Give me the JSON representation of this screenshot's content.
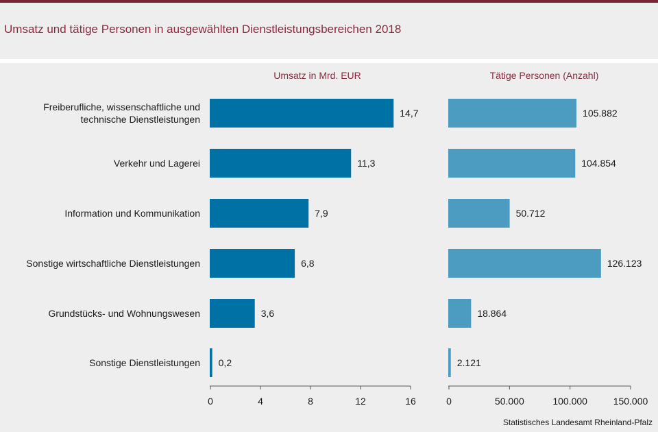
{
  "title": "Umsatz und tätige Personen in ausgewählten Dienstleistungsbereichen 2018",
  "source": "Statistisches Landesamt Rheinland-Pfalz",
  "colors": {
    "title": "#8b2a3e",
    "bar_umsatz": "#0071a4",
    "bar_personen": "#4b9cc0",
    "accent_rule": "#7a2535"
  },
  "chart_data": {
    "type": "bar",
    "orientation": "horizontal",
    "categories": [
      "Freiberufliche, wissenschaftliche und technische Dienstleistungen",
      "Verkehr und Lagerei",
      "Information und Kommunikation",
      "Sonstige wirtschaftliche Dienstleistungen",
      "Grundstücks- und Wohnungswesen",
      "Sonstige Dienstleistungen"
    ],
    "category_lines": [
      [
        "Freiberufliche, wissenschaftliche und",
        "technische Dienstleistungen"
      ],
      [
        "Verkehr und Lagerei"
      ],
      [
        "Information und Kommunikation"
      ],
      [
        "Sonstige wirtschaftliche Dienstleistungen"
      ],
      [
        "Grundstücks- und Wohnungswesen"
      ],
      [
        "Sonstige Dienstleistungen"
      ]
    ],
    "panels": [
      {
        "title": "Umsatz  in Mrd. EUR",
        "values": [
          14.7,
          11.3,
          7.9,
          6.8,
          3.6,
          0.2
        ],
        "value_labels": [
          "14,7",
          "11,3",
          "7,9",
          "6,8",
          "3,6",
          "0,2"
        ],
        "xlim": [
          0,
          16
        ],
        "ticks": [
          0,
          4,
          8,
          12,
          16
        ],
        "tick_labels": [
          "0",
          "4",
          "8",
          "12",
          "16"
        ]
      },
      {
        "title": "Tätige Personen (Anzahl)",
        "values": [
          105882,
          104854,
          50712,
          126123,
          18864,
          2121
        ],
        "value_labels": [
          "105.882",
          "104.854",
          "50.712",
          "126.123",
          "18.864",
          "2.121"
        ],
        "xlim": [
          0,
          150000
        ],
        "ticks": [
          0,
          50000,
          100000,
          150000
        ],
        "tick_labels": [
          "0",
          "50.000",
          "100.000",
          "150.000"
        ]
      }
    ],
    "grid": false,
    "legend": "none"
  }
}
